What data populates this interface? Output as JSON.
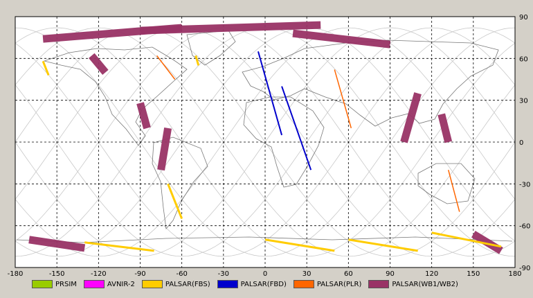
{
  "x_ticks": [
    "-180",
    "-150",
    "-120",
    "-90",
    "-60",
    "-30",
    "0",
    "30",
    "60",
    "90",
    "120",
    "150",
    "180"
  ],
  "y_ticks": [
    "90",
    "60",
    "30",
    "0",
    "-30",
    "-60",
    "-90"
  ],
  "legend": [
    {
      "label": "PRSIM",
      "color": "#99cc00"
    },
    {
      "label": "AVNIR-2",
      "color": "#ff00ff"
    },
    {
      "label": "PALSAR(FBS)",
      "color": "#ffcc00"
    },
    {
      "label": "PALSAR(FBD)",
      "color": "#0000cc"
    },
    {
      "label": "PALSAR(PLR)",
      "color": "#ff6600"
    },
    {
      "label": "PALSAR(WB1/WB2)",
      "color": "#993366"
    }
  ],
  "map": {
    "xlim": [
      -180,
      180
    ],
    "ylim": [
      -90,
      90
    ],
    "grid": true,
    "background": "#ffffff",
    "frame": "#d4d0c8"
  },
  "observations": {
    "wb": [
      {
        "lon1": -160,
        "lat1": 74,
        "lon2": -60,
        "lat2": 82
      },
      {
        "lon1": -90,
        "lat1": 80,
        "lon2": 40,
        "lat2": 84
      },
      {
        "lon1": 20,
        "lat1": 78,
        "lon2": 90,
        "lat2": 70
      },
      {
        "lon1": -125,
        "lat1": 62,
        "lon2": -115,
        "lat2": 50
      },
      {
        "lon1": -90,
        "lat1": 28,
        "lon2": -85,
        "lat2": 10
      },
      {
        "lon1": -70,
        "lat1": 10,
        "lon2": -75,
        "lat2": -20
      },
      {
        "lon1": 110,
        "lat1": 35,
        "lon2": 100,
        "lat2": 0
      },
      {
        "lon1": 127,
        "lat1": 20,
        "lon2": 132,
        "lat2": 0
      },
      {
        "lon1": -170,
        "lat1": -70,
        "lon2": -130,
        "lat2": -76
      },
      {
        "lon1": 150,
        "lat1": -66,
        "lon2": 170,
        "lat2": -78
      }
    ],
    "fbs": [
      {
        "lon1": -160,
        "lat1": 58,
        "lon2": -156,
        "lat2": 48
      },
      {
        "lon1": -50,
        "lat1": 62,
        "lon2": -48,
        "lat2": 55
      },
      {
        "lon1": -70,
        "lat1": -30,
        "lon2": -60,
        "lat2": -55
      },
      {
        "lon1": 120,
        "lat1": -65,
        "lon2": 170,
        "lat2": -75
      },
      {
        "lon1": 60,
        "lat1": -70,
        "lon2": 110,
        "lat2": -78
      },
      {
        "lon1": 0,
        "lat1": -70,
        "lon2": 50,
        "lat2": -78
      },
      {
        "lon1": -130,
        "lat1": -72,
        "lon2": -80,
        "lat2": -78
      }
    ],
    "fbd": [
      {
        "lon1": -5,
        "lat1": 65,
        "lon2": 12,
        "lat2": 5
      },
      {
        "lon1": 12,
        "lat1": 40,
        "lon2": 33,
        "lat2": -20
      }
    ],
    "plr": [
      {
        "lon1": -78,
        "lat1": 62,
        "lon2": -65,
        "lat2": 45
      },
      {
        "lon1": 50,
        "lat1": 52,
        "lon2": 62,
        "lat2": 10
      },
      {
        "lon1": 132,
        "lat1": -20,
        "lon2": 140,
        "lat2": -50
      }
    ]
  }
}
